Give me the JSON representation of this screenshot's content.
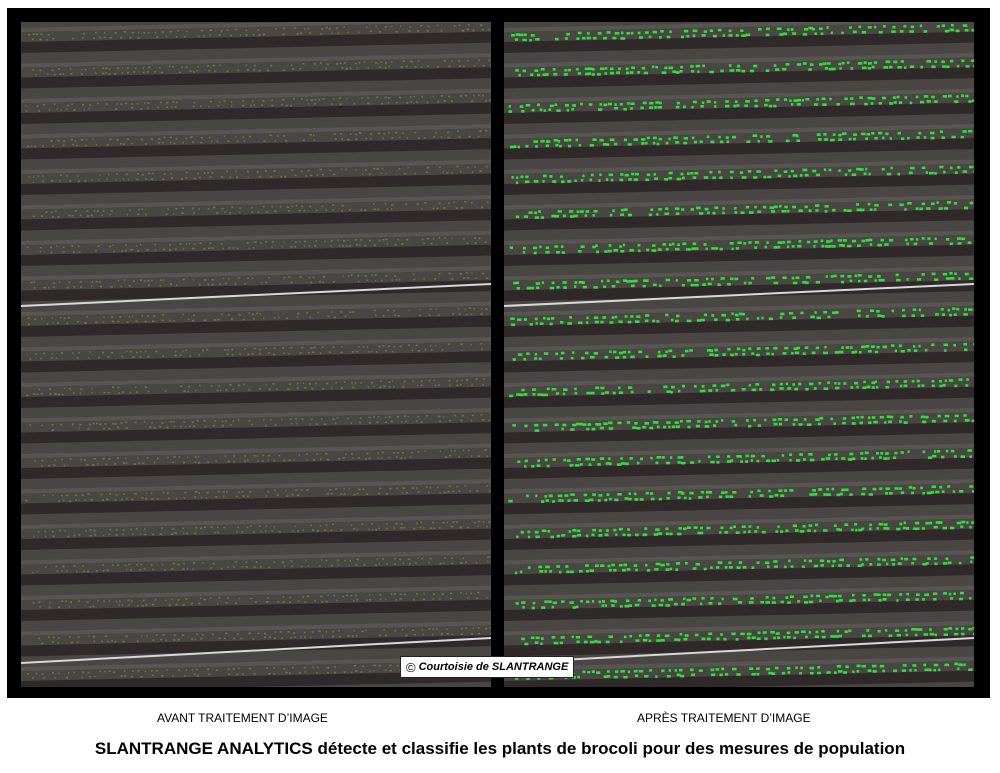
{
  "credit": {
    "symbol": "©",
    "text": "Courtoisie de SLANTRANGE"
  },
  "labels": {
    "before": "AVANT TRAITEMENT D’IMAGE",
    "after": "APRÈS TRAITEMENT D’IMAGE"
  },
  "caption": "SLANTRANGE ANALYTICS détecte et classifie les plants de brocoli pour des mesures de population",
  "colors": {
    "frame": "#000000",
    "soil": "#4a4644",
    "furrow": "#2a2624",
    "ridge_highlight": "#6c6865",
    "plant_raw": "#7d8a3c",
    "plant_detected": "#2ee83a",
    "wire": "#d8d8d8"
  }
}
